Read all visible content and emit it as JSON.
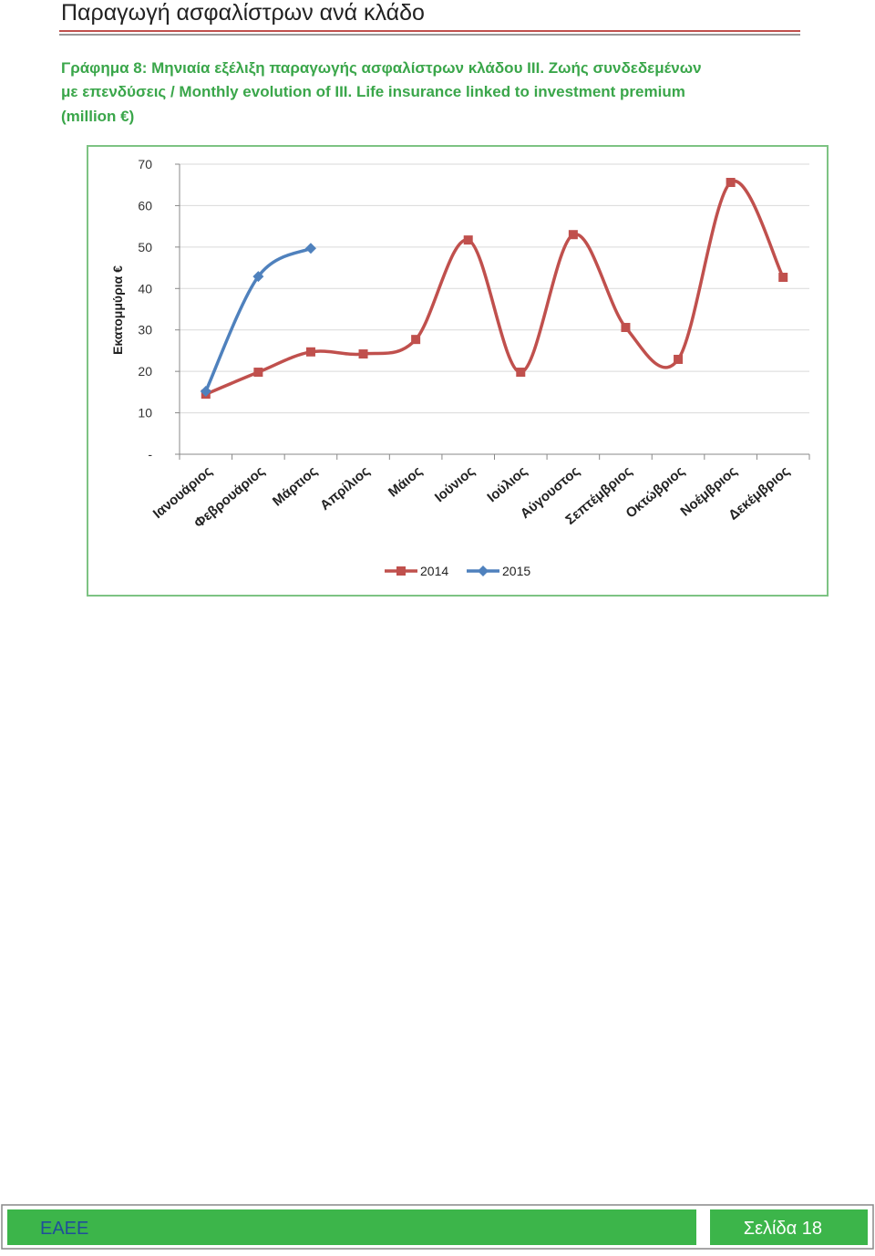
{
  "header": {
    "title": "Παραγωγή ασφαλίστρων ανά κλάδο"
  },
  "caption": {
    "lines": [
      "Γράφημα 8: Μηνιαία εξέλιξη παραγωγής ασφαλίστρων κλάδου ΙΙΙ. Ζωής συνδεδεμένων",
      "με επενδύσεις / Monthly evolution of III. Life insurance linked to investment premium",
      "(million €)"
    ]
  },
  "chart_data": {
    "type": "line",
    "y_label": "Εκατομμύρια €",
    "categories": [
      "Ιανουάριος",
      "Φεβρουάριος",
      "Μάρτιος",
      "Απρίλιος",
      "Μάιος",
      "Ιούνιος",
      "Ιούλιος",
      "Αύγουστος",
      "Σεπτέμβριος",
      "Οκτώβριος",
      "Νοέμβριος",
      "Δεκέμβριος"
    ],
    "series": [
      {
        "name": "2014",
        "color": "#c0504d",
        "marker": "square",
        "values": [
          14.5,
          19.8,
          24.7,
          24.2,
          27.7,
          51.7,
          19.8,
          53.0,
          30.6,
          22.9,
          65.6,
          42.7
        ]
      },
      {
        "name": "2015",
        "color": "#4f81bd",
        "marker": "diamond",
        "values": [
          15.2,
          42.9,
          49.7,
          null,
          null,
          null,
          null,
          null,
          null,
          null,
          null,
          null
        ]
      }
    ],
    "ylim": [
      0,
      70
    ],
    "yticks": [
      {
        "value": 0,
        "label": "-"
      },
      10,
      20,
      30,
      40,
      50,
      60,
      70
    ],
    "grid": true,
    "smooth": true,
    "legend": "bottom"
  },
  "footer": {
    "left": "ΕΑΕΕ",
    "right": "Σελίδα 18"
  }
}
